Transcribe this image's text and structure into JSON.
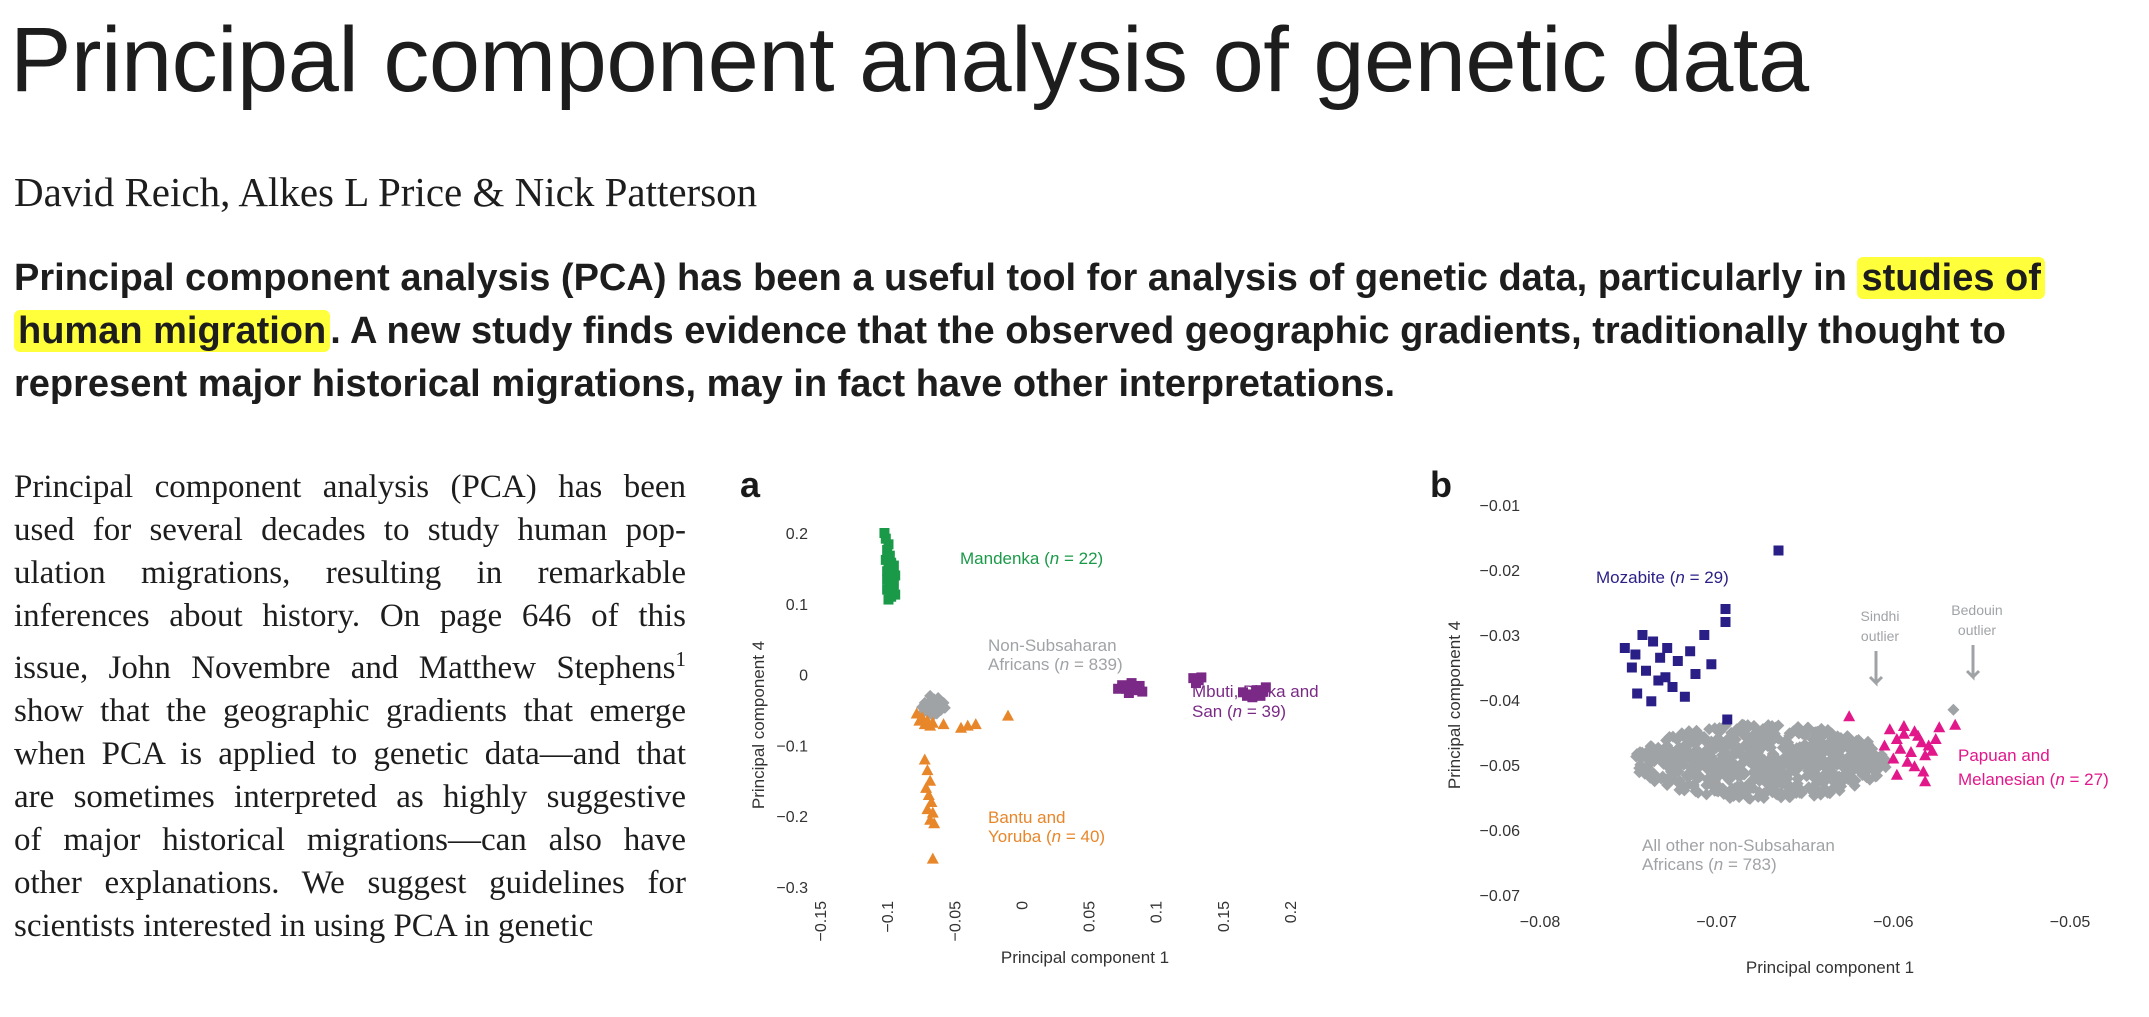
{
  "title": "Principal component analysis of genetic data",
  "authors": "David Reich, Alkes L Price & Nick Patterson",
  "abstract": {
    "line1_pre": "Principal component analysis (PCA) has been a useful tool for analysis of genetic data, particularly in ",
    "line1_hl": "studies of",
    "line2_hl": "human migration",
    "line2_post": ". A new study finds evidence that the observed geographic gradients, traditionally thought to",
    "line3": "represent major historical migrations, may in fact have other interpretations."
  },
  "body_lines": [
    "Principal component analysis (PCA) has been",
    "used for several decades to study human pop-",
    "ulation migrations, resulting in remarkable",
    "inferences about history. On page 646 of this",
    "issue, John Novembre and Matthew Stephens",
    "show that the geographic gradients that emerge",
    "when PCA is applied to genetic data—and that",
    "are sometimes interpreted as highly suggestive",
    "of major historical migrations—can also have",
    "other explanations. We suggest guidelines for",
    "scientists interested in using PCA in genetic"
  ],
  "footnote_ref": "1",
  "colors": {
    "highlight": "#ffff3c",
    "green": "#1a9a48",
    "gray": "#a0a3a6",
    "orange": "#e8862a",
    "purple": "#7a2a86",
    "navy": "#2a1f86",
    "magenta": "#e2178a"
  },
  "chart_data": [
    {
      "panel": "a",
      "type": "scatter",
      "xlabel": "Principal component 1",
      "ylabel": "Principal component 4",
      "xlim": [
        -0.15,
        0.2
      ],
      "ylim": [
        -0.3,
        0.2
      ],
      "xticks": [
        "−0.15",
        "−0.1",
        "−0.05",
        "0",
        "0.05",
        "0.1",
        "0.15",
        "0.2"
      ],
      "yticks": [
        "0.2",
        "0.1",
        "0",
        "−0.1",
        "−0.2",
        "−0.3"
      ],
      "series": [
        {
          "name": "Mandenka",
          "n_label": "22",
          "color": "#1a9a48",
          "marker": "square",
          "points": [
            [
              -0.102,
              0.2
            ],
            [
              -0.101,
              0.192
            ],
            [
              -0.099,
              0.184
            ],
            [
              -0.1,
              0.176
            ],
            [
              -0.098,
              0.168
            ],
            [
              -0.101,
              0.162
            ],
            [
              -0.097,
              0.158
            ],
            [
              -0.095,
              0.154
            ],
            [
              -0.099,
              0.15
            ],
            [
              -0.1,
              0.146
            ],
            [
              -0.096,
              0.143
            ],
            [
              -0.094,
              0.14
            ],
            [
              -0.098,
              0.137
            ],
            [
              -0.1,
              0.134
            ],
            [
              -0.097,
              0.13
            ],
            [
              -0.095,
              0.127
            ],
            [
              -0.098,
              0.123
            ],
            [
              -0.1,
              0.12
            ],
            [
              -0.096,
              0.116
            ],
            [
              -0.094,
              0.113
            ],
            [
              -0.097,
              0.11
            ],
            [
              -0.099,
              0.106
            ]
          ]
        },
        {
          "name": "Non-Subsaharan Africans",
          "n_label": "839",
          "color": "#a0a3a6",
          "marker": "diamond",
          "points": [
            [
              -0.072,
              -0.04
            ],
            [
              -0.07,
              -0.043
            ],
            [
              -0.068,
              -0.038
            ],
            [
              -0.066,
              -0.045
            ],
            [
              -0.064,
              -0.041
            ],
            [
              -0.062,
              -0.047
            ],
            [
              -0.071,
              -0.05
            ],
            [
              -0.067,
              -0.052
            ],
            [
              -0.065,
              -0.035
            ],
            [
              -0.061,
              -0.039
            ],
            [
              -0.059,
              -0.044
            ],
            [
              -0.069,
              -0.055
            ],
            [
              -0.063,
              -0.055
            ],
            [
              -0.06,
              -0.05
            ],
            [
              -0.074,
              -0.046
            ],
            [
              -0.058,
              -0.04
            ],
            [
              -0.066,
              -0.058
            ],
            [
              -0.062,
              -0.033
            ],
            [
              -0.057,
              -0.047
            ],
            [
              -0.073,
              -0.053
            ],
            [
              -0.068,
              -0.03
            ]
          ]
        },
        {
          "name": "Bantu and Yoruba",
          "n_label": "40",
          "color": "#e8862a",
          "marker": "triangle",
          "points": [
            [
              -0.078,
              -0.055
            ],
            [
              -0.076,
              -0.065
            ],
            [
              -0.074,
              -0.06
            ],
            [
              -0.072,
              -0.07
            ],
            [
              -0.07,
              -0.065
            ],
            [
              -0.068,
              -0.072
            ],
            [
              -0.066,
              -0.068
            ],
            [
              -0.058,
              -0.07
            ],
            [
              -0.045,
              -0.075
            ],
            [
              -0.04,
              -0.072
            ],
            [
              -0.034,
              -0.07
            ],
            [
              -0.01,
              -0.058
            ],
            [
              -0.072,
              -0.12
            ],
            [
              -0.07,
              -0.135
            ],
            [
              -0.068,
              -0.15
            ],
            [
              -0.071,
              -0.16
            ],
            [
              -0.069,
              -0.17
            ],
            [
              -0.067,
              -0.18
            ],
            [
              -0.07,
              -0.19
            ],
            [
              -0.066,
              -0.195
            ],
            [
              -0.068,
              -0.205
            ],
            [
              -0.065,
              -0.21
            ],
            [
              -0.066,
              -0.26
            ]
          ]
        },
        {
          "name": "Mbuti, Biaka and San",
          "n_label": "39",
          "color": "#7a2a86",
          "marker": "square",
          "points": [
            [
              0.075,
              -0.015
            ],
            [
              0.078,
              -0.02
            ],
            [
              0.082,
              -0.012
            ],
            [
              0.085,
              -0.022
            ],
            [
              0.088,
              -0.016
            ],
            [
              0.09,
              -0.024
            ],
            [
              0.08,
              -0.026
            ],
            [
              0.072,
              -0.02
            ],
            [
              0.128,
              -0.005
            ],
            [
              0.132,
              -0.008
            ],
            [
              0.13,
              -0.012
            ],
            [
              0.134,
              -0.004
            ],
            [
              0.165,
              -0.025
            ],
            [
              0.17,
              -0.028
            ],
            [
              0.175,
              -0.022
            ],
            [
              0.178,
              -0.03
            ],
            [
              0.18,
              -0.024
            ],
            [
              0.172,
              -0.032
            ],
            [
              0.168,
              -0.03
            ],
            [
              0.182,
              -0.018
            ]
          ]
        }
      ]
    },
    {
      "panel": "b",
      "type": "scatter",
      "xlabel": "Principal component 1",
      "ylabel": "Principal component 4",
      "xlim": [
        -0.08,
        -0.05
      ],
      "ylim": [
        -0.07,
        -0.01
      ],
      "xticks": [
        "−0.08",
        "−0.07",
        "−0.06",
        "−0.05"
      ],
      "yticks": [
        "−0.01",
        "−0.02",
        "−0.03",
        "−0.04",
        "−0.05",
        "−0.06",
        "−0.07"
      ],
      "series": [
        {
          "name": "Mozabite",
          "n_label": "29",
          "color": "#2a1f86",
          "marker": "square",
          "points": [
            [
              -0.0665,
              -0.017
            ],
            [
              -0.0695,
              -0.026
            ],
            [
              -0.0695,
              -0.028
            ],
            [
              -0.0742,
              -0.03
            ],
            [
              -0.0736,
              -0.031
            ],
            [
              -0.0728,
              -0.032
            ],
            [
              -0.0746,
              -0.033
            ],
            [
              -0.0732,
              -0.0335
            ],
            [
              -0.0722,
              -0.034
            ],
            [
              -0.0748,
              -0.035
            ],
            [
              -0.074,
              -0.0355
            ],
            [
              -0.0712,
              -0.036
            ],
            [
              -0.0733,
              -0.037
            ],
            [
              -0.0725,
              -0.038
            ],
            [
              -0.0745,
              -0.039
            ],
            [
              -0.0718,
              -0.0395
            ],
            [
              -0.0707,
              -0.03
            ],
            [
              -0.0752,
              -0.032
            ],
            [
              -0.0715,
              -0.0325
            ],
            [
              -0.0729,
              -0.0365
            ],
            [
              -0.0737,
              -0.0402
            ],
            [
              -0.0703,
              -0.0345
            ],
            [
              -0.0694,
              -0.043
            ]
          ]
        },
        {
          "name": "All other non-Subsaharan Africans",
          "n_label": "783",
          "color": "#a0a3a6",
          "marker": "diamond",
          "points": []
        },
        {
          "name": "Papuan and Melanesian",
          "n_label": "27",
          "color": "#e2178a",
          "marker": "triangle",
          "points": [
            [
              -0.0602,
              -0.0445
            ],
            [
              -0.0598,
              -0.046
            ],
            [
              -0.0594,
              -0.0452
            ],
            [
              -0.0588,
              -0.0448
            ],
            [
              -0.0584,
              -0.0465
            ],
            [
              -0.0596,
              -0.0475
            ],
            [
              -0.059,
              -0.048
            ],
            [
              -0.0586,
              -0.0455
            ],
            [
              -0.058,
              -0.047
            ],
            [
              -0.06,
              -0.049
            ],
            [
              -0.0592,
              -0.0495
            ],
            [
              -0.0582,
              -0.0485
            ],
            [
              -0.0576,
              -0.046
            ],
            [
              -0.0605,
              -0.047
            ],
            [
              -0.0578,
              -0.0478
            ],
            [
              -0.0588,
              -0.0502
            ],
            [
              -0.0594,
              -0.044
            ],
            [
              -0.0574,
              -0.0442
            ],
            [
              -0.0583,
              -0.051
            ],
            [
              -0.0598,
              -0.0515
            ],
            [
              -0.0565,
              -0.0438
            ],
            [
              -0.0625,
              -0.0425
            ],
            [
              -0.0582,
              -0.0525
            ]
          ]
        }
      ],
      "annotations": [
        {
          "text": [
            "Sindhi",
            "outlier"
          ],
          "color": "#a0a3a6",
          "at": [
            -0.0615,
            -0.03
          ]
        },
        {
          "text": [
            "Bedouin",
            "outlier"
          ],
          "color": "#a0a3a6",
          "at": [
            -0.0562,
            -0.03
          ]
        }
      ]
    }
  ]
}
